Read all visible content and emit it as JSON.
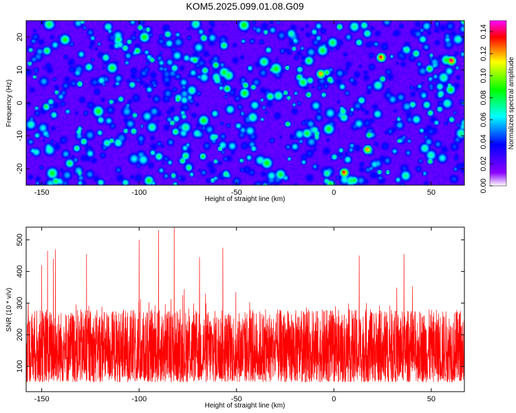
{
  "title": "KOM5.2025.099.01.08.G09",
  "colormap": [
    "#ffffff",
    "#8a00ff",
    "#0000ff",
    "#00ffff",
    "#00ff00",
    "#ffff00",
    "#ff0000",
    "#ff00ff"
  ],
  "line_color": "#ff0000",
  "chart_data": [
    {
      "type": "heatmap",
      "xlabel": "Height of straight line (km)",
      "ylabel": "Frequency (Hz)",
      "xlim": [
        -158,
        67
      ],
      "ylim": [
        -25,
        25
      ],
      "xticks": [
        -150,
        -100,
        -50,
        0,
        50
      ],
      "yticks": [
        -20,
        -10,
        0,
        10,
        20
      ],
      "colorbar": {
        "label": "Normalized spectral amplitude",
        "range": [
          0.0,
          0.15
        ],
        "ticks": [
          "0.00",
          "0.02",
          "0.04",
          "0.06",
          "0.08",
          "0.10",
          "0.12",
          "0.14"
        ]
      },
      "peaks": [
        {
          "x": 60,
          "y": 13,
          "v": 0.14
        },
        {
          "x": 24,
          "y": 14,
          "v": 0.13
        },
        {
          "x": 5,
          "y": -21,
          "v": 0.13
        },
        {
          "x": 17,
          "y": -14,
          "v": 0.12
        },
        {
          "x": -7,
          "y": 9,
          "v": 0.12
        },
        {
          "x": -18,
          "y": 8,
          "v": 0.08
        },
        {
          "x": -148,
          "y": -1,
          "v": 0.08
        },
        {
          "x": -120,
          "y": -5,
          "v": 0.07
        },
        {
          "x": -120,
          "y": -24,
          "v": 0.07
        },
        {
          "x": -10,
          "y": -8,
          "v": 0.07
        },
        {
          "x": -20,
          "y": 19,
          "v": 0.06
        },
        {
          "x": -95,
          "y": 14,
          "v": 0.06
        }
      ]
    },
    {
      "type": "line",
      "xlabel": "Height of straight line (km)",
      "ylabel": "SNR (10 * v/v)",
      "xlim": [
        -158,
        67
      ],
      "ylim": [
        20,
        540
      ],
      "xticks": [
        -150,
        -100,
        -50,
        0,
        50
      ],
      "yticks": [
        100,
        200,
        300,
        400,
        500
      ],
      "peaks": [
        {
          "x": -82,
          "y": 540
        },
        {
          "x": -90,
          "y": 530
        },
        {
          "x": -100,
          "y": 500
        },
        {
          "x": -57,
          "y": 475
        },
        {
          "x": -147,
          "y": 465
        },
        {
          "x": -144,
          "y": 440
        },
        {
          "x": -143,
          "y": 470
        },
        {
          "x": -127,
          "y": 455
        },
        {
          "x": -69,
          "y": 445
        },
        {
          "x": 36,
          "y": 455
        },
        {
          "x": 13,
          "y": 450
        },
        {
          "x": -150,
          "y": 420
        }
      ]
    }
  ]
}
